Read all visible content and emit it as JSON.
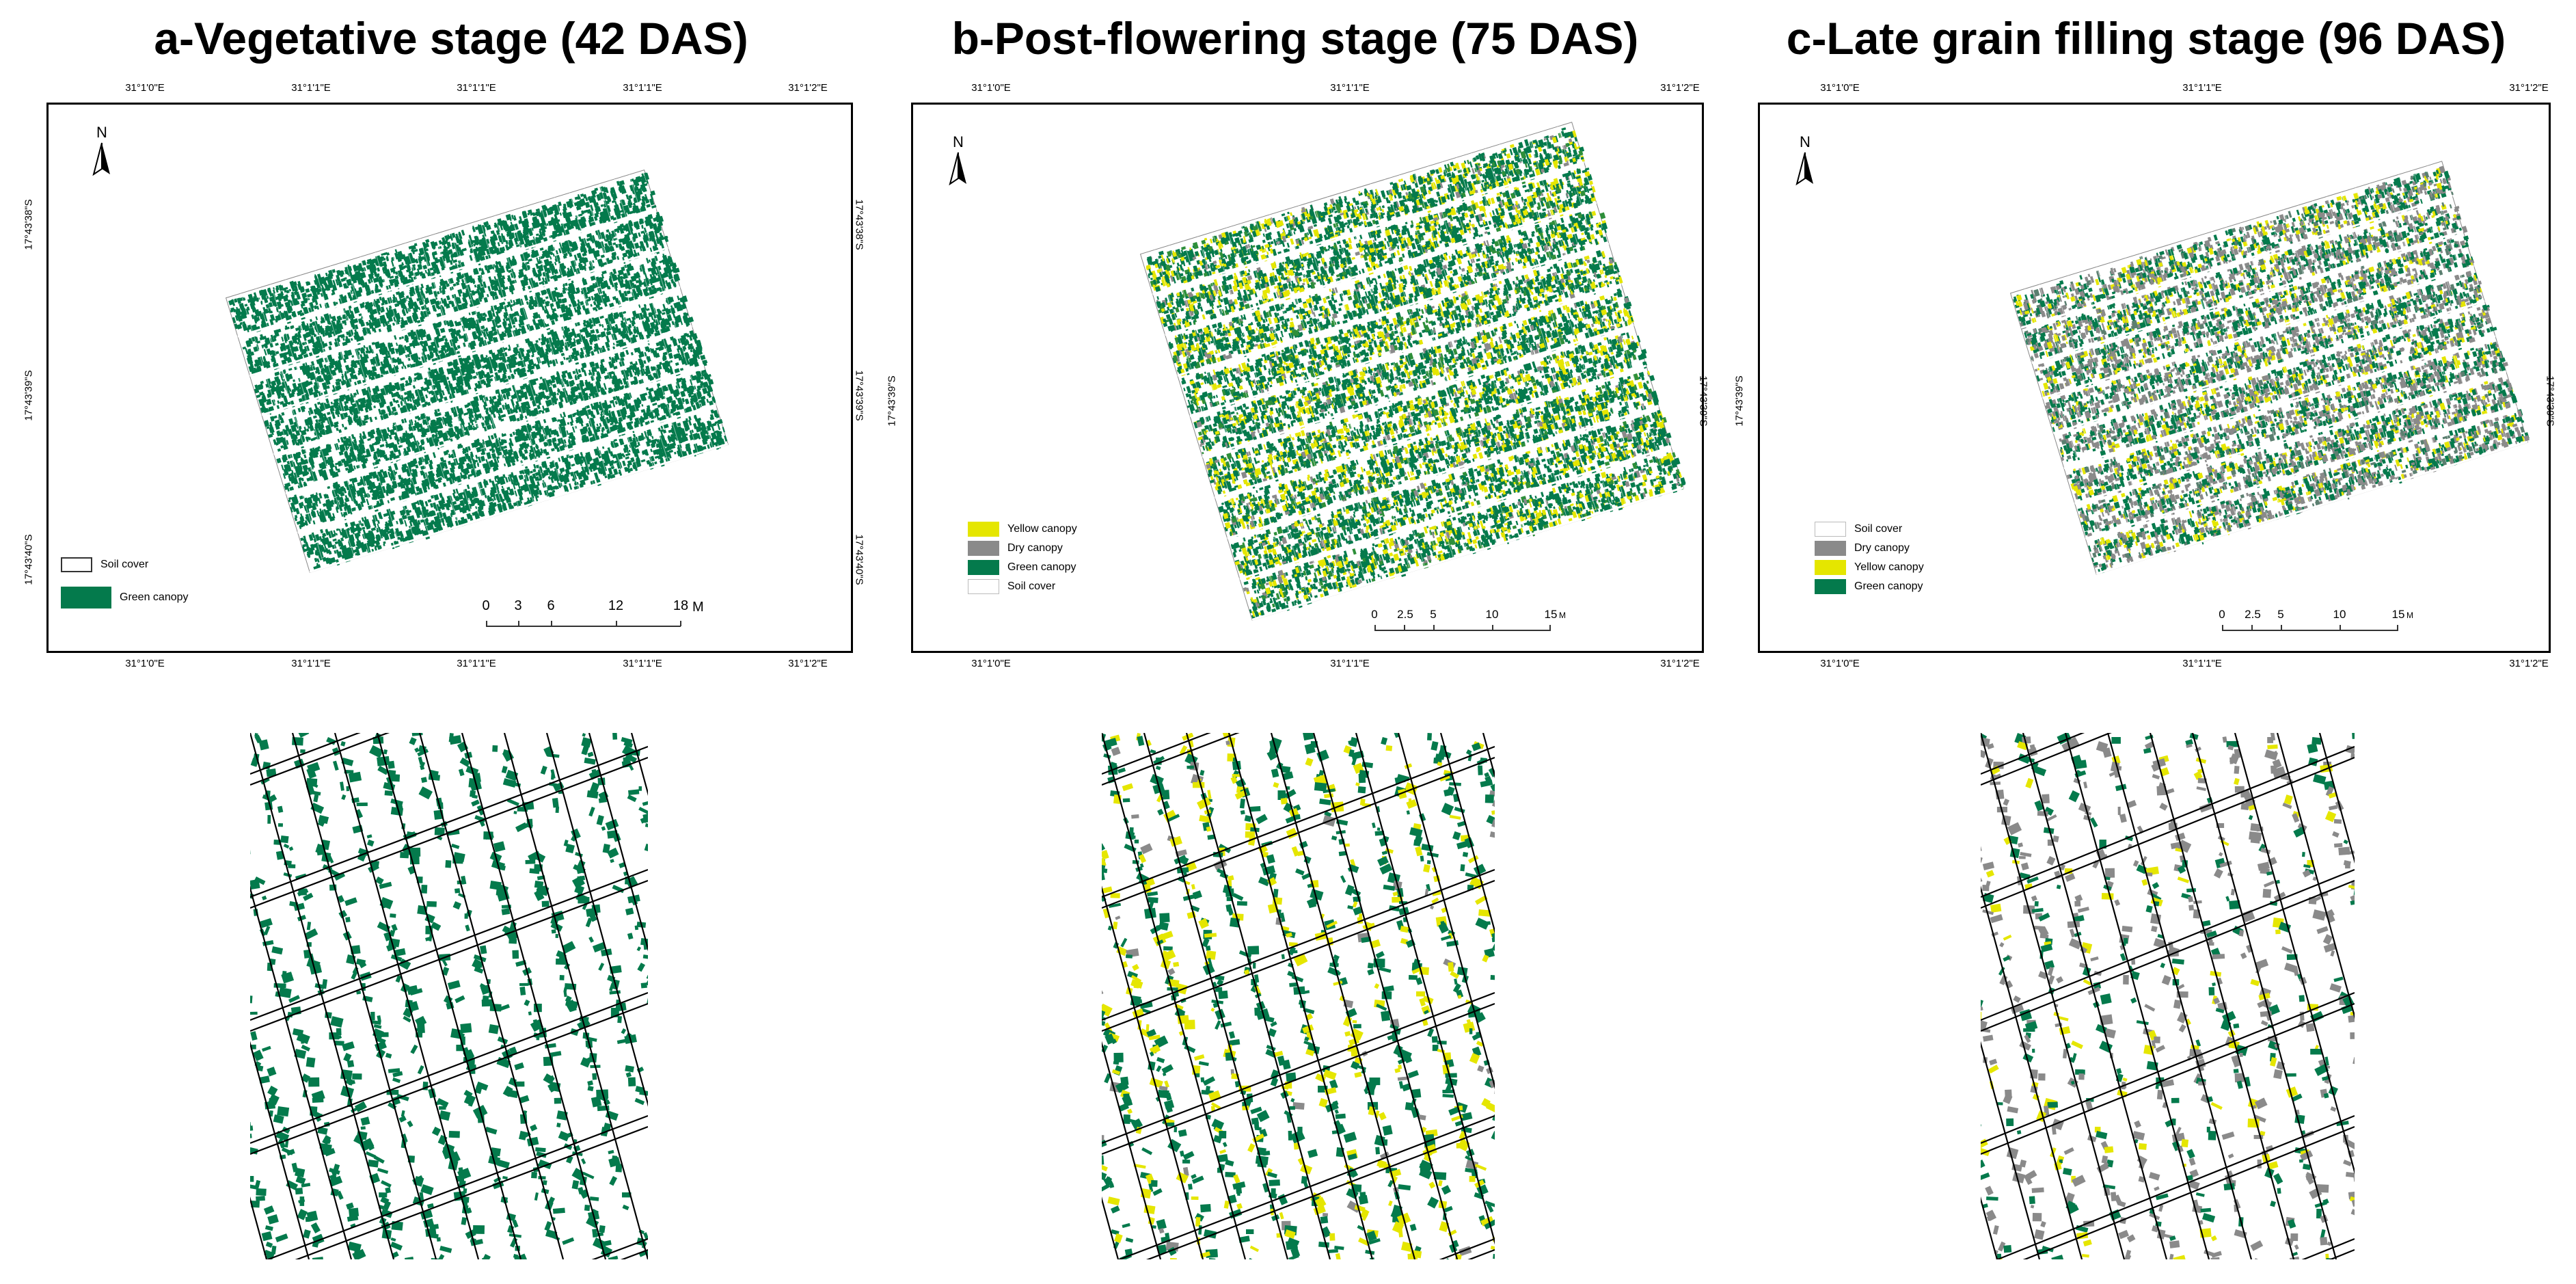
{
  "titles": {
    "a": "a-Vegetative stage (42 DAS)",
    "b": "b-Post-flowering stage (75 DAS)",
    "c": "c-Late grain filling stage (96 DAS)"
  },
  "coords": {
    "a": {
      "lon": [
        "31°1'0\"E",
        "31°1'1\"E",
        "31°1'1\"E",
        "31°1'1\"E",
        "31°1'2\"E"
      ],
      "lat": [
        "17°43'38\"S",
        "17°43'39\"S",
        "17°43'40\"S"
      ]
    },
    "b": {
      "lon": [
        "31°1'0\"E",
        "31°1'1\"E",
        "31°1'2\"E"
      ],
      "lat": [
        "17°43'39\"S"
      ]
    },
    "c": {
      "lon": [
        "31°1'0\"E",
        "31°1'1\"E",
        "31°1'2\"E"
      ],
      "lat": [
        "17°43'39\"S"
      ]
    }
  },
  "north_label": "N",
  "legends": {
    "a": [
      {
        "label": "Soil cover",
        "color": "#ffffff"
      },
      {
        "label": "Green canopy",
        "color": "#047a4c"
      }
    ],
    "b": [
      {
        "label": "Yellow canopy",
        "color": "#e5e600"
      },
      {
        "label": "Dry canopy",
        "color": "#8a8a8a"
      },
      {
        "label": "Green canopy",
        "color": "#047a4c"
      },
      {
        "label": "Soil cover",
        "color": "#ffffff"
      }
    ],
    "c": [
      {
        "label": "Soil cover",
        "color": "#ffffff"
      },
      {
        "label": "Dry canopy",
        "color": "#8a8a8a"
      },
      {
        "label": "Yellow canopy",
        "color": "#e5e600"
      },
      {
        "label": "Green canopy",
        "color": "#047a4c"
      }
    ]
  },
  "scalebars": {
    "a": {
      "ticks": [
        "0",
        "3",
        "6",
        "12",
        "18"
      ],
      "unit": "M"
    },
    "b": {
      "ticks": [
        "0",
        "2.5",
        "5",
        "10",
        "15"
      ],
      "unit": "M"
    },
    "c": {
      "ticks": [
        "0",
        "2.5",
        "5",
        "10",
        "15"
      ],
      "unit": "M"
    }
  },
  "colors": {
    "green": "#047a4c",
    "yellow": "#e5e600",
    "gray": "#8a8a8a",
    "soil": "#ffffff"
  }
}
